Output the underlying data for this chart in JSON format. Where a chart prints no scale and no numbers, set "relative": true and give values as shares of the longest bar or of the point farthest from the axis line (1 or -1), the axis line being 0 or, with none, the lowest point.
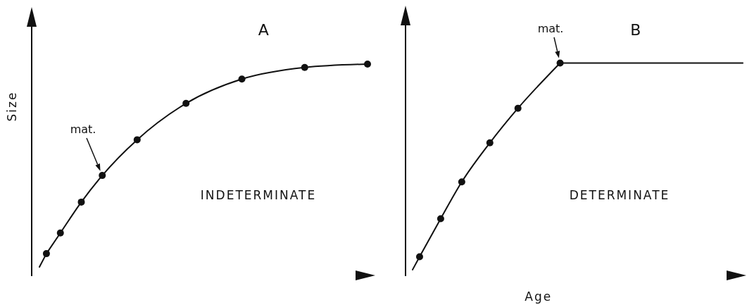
{
  "chart_data": [
    {
      "type": "line",
      "title": "A",
      "ylabel": "Size",
      "relative": true,
      "categories": [
        null,
        null,
        null,
        null,
        null,
        null,
        null,
        null,
        null,
        null,
        null,
        null,
        null,
        null,
        null,
        null,
        null,
        null,
        null,
        null,
        null,
        null,
        null,
        null,
        null,
        null,
        null,
        null,
        null,
        null,
        null,
        null,
        null,
        null,
        null,
        null,
        null,
        null,
        null,
        null,
        null,
        null,
        null,
        null,
        null,
        null,
        null,
        null
      ],
      "series": [
        {
          "color": "#111111",
          "marker": "none",
          "values": [
            0.04,
            0.103,
            null,
            null,
            null,
            null,
            null,
            null,
            null,
            null,
            null,
            null,
            null,
            null,
            null,
            null,
            null,
            null,
            null,
            null,
            null,
            null,
            null,
            null,
            null,
            null,
            null,
            null,
            null,
            null,
            null,
            null,
            null,
            null,
            null,
            null,
            null,
            null,
            null,
            null,
            null,
            null,
            null,
            null,
            null,
            null,
            null,
            null
          ]
        },
        {
          "color": "#111111",
          "marker": "circle",
          "values": [
            null,
            0.103,
            null,
            0.201,
            null,
            null,
            0.347,
            null,
            null,
            0.473,
            null,
            null,
            null,
            null,
            0.642,
            null,
            null,
            null,
            null,
            null,
            null,
            0.814,
            null,
            null,
            null,
            null,
            null,
            null,
            null,
            0.929,
            null,
            null,
            null,
            null,
            null,
            null,
            null,
            null,
            0.984,
            null,
            null,
            null,
            null,
            null,
            null,
            null,
            null,
            1.0
          ]
        }
      ],
      "annotations": [
        "mat.",
        "INDETERMINATE"
      ]
    },
    {
      "type": "line",
      "title": "B",
      "xlabel": "Age",
      "relative": true,
      "categories": [
        null,
        null,
        null,
        null,
        null,
        null,
        null,
        null,
        null,
        null,
        null,
        null,
        null,
        null,
        null,
        null,
        null,
        null,
        null,
        null,
        null,
        null,
        null,
        null,
        null,
        null,
        null,
        null,
        null,
        null,
        null,
        null,
        null,
        null,
        null,
        null,
        null,
        null,
        null,
        null,
        null,
        null,
        null,
        null,
        null,
        null,
        null,
        null
      ],
      "series": [
        {
          "color": "#111111",
          "marker": "none",
          "values": [
            0.027,
            0.088,
            null,
            null,
            null,
            null,
            null,
            null,
            null,
            null,
            null,
            null,
            null,
            null,
            null,
            null,
            null,
            null,
            null,
            null,
            null,
            1.0,
            1.0,
            1.0,
            1.0,
            1.0,
            1.0,
            1.0,
            1.0,
            1.0,
            1.0,
            1.0,
            1.0,
            1.0,
            1.0,
            1.0,
            1.0,
            1.0,
            1.0,
            1.0,
            1.0,
            1.0,
            1.0,
            1.0,
            1.0,
            1.0,
            1.0,
            1.0
          ]
        },
        {
          "color": "#111111",
          "marker": "circle",
          "values": [
            null,
            0.088,
            null,
            null,
            0.267,
            null,
            null,
            0.44,
            null,
            null,
            null,
            0.624,
            null,
            null,
            null,
            0.787,
            null,
            null,
            null,
            null,
            null,
            1.0,
            null,
            null,
            null,
            null,
            null,
            null,
            null,
            null,
            null,
            null,
            null,
            null,
            null,
            null,
            null,
            null,
            null,
            null,
            null,
            null,
            null,
            null,
            null,
            null,
            null,
            null
          ]
        }
      ],
      "annotations": [
        "mat.",
        "DETERMINATE"
      ]
    }
  ]
}
